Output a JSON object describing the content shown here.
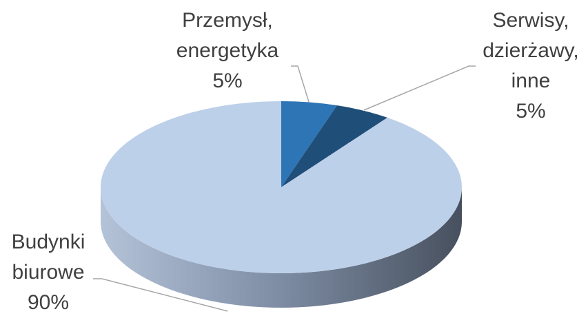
{
  "chart_data": {
    "type": "pie",
    "categories": [
      "Przemysł, energetyka",
      "Serwisy, dzierżawy, inne",
      "Budynki biurowe"
    ],
    "values": [
      5,
      5,
      90
    ],
    "value_labels": [
      "5%",
      "5%",
      "90%"
    ],
    "colors": [
      "#2e75b6",
      "#1f4e79",
      "#bdd0e9"
    ]
  }
}
